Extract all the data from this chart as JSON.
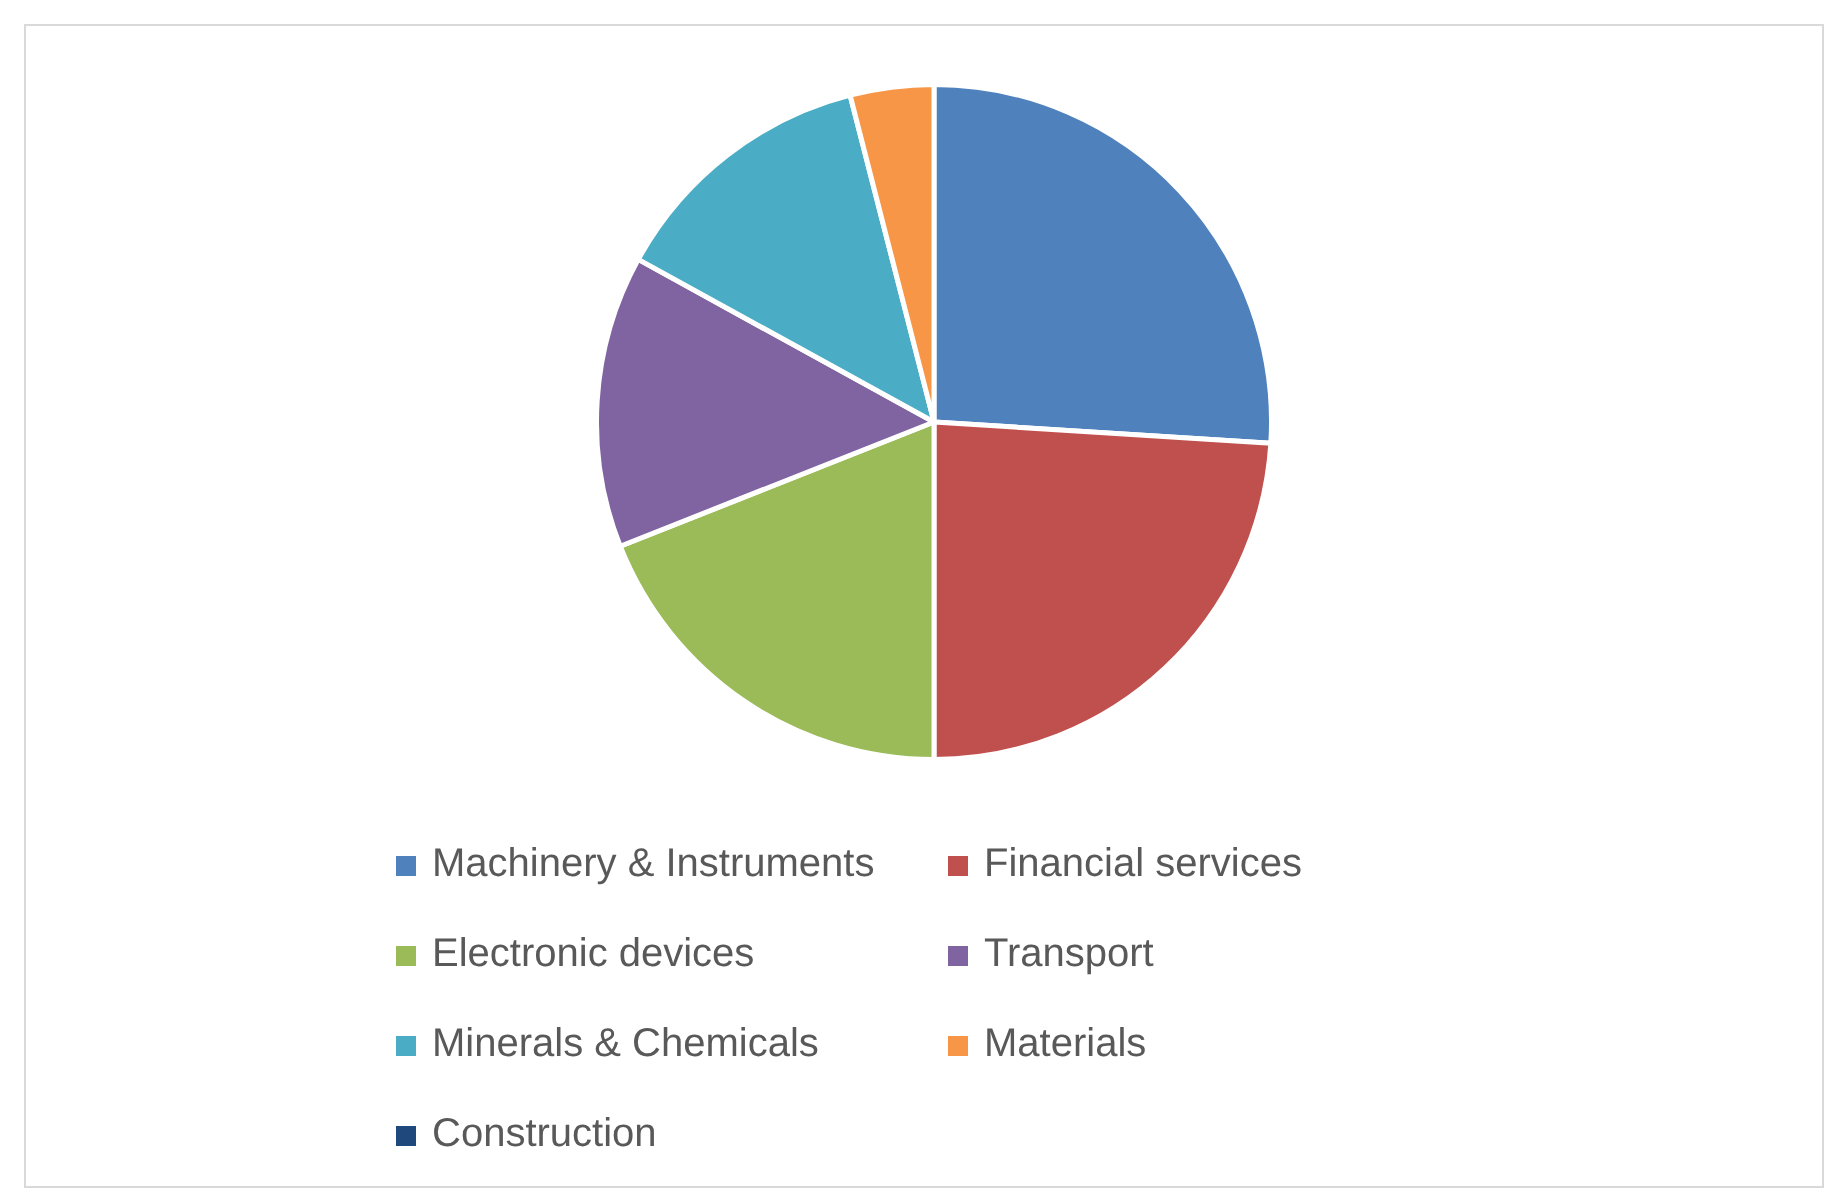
{
  "chart_data": {
    "type": "pie",
    "categories": [
      "Machinery & Instruments",
      "Financial services",
      "Electronic devices",
      "Transport",
      "Minerals & Chemicals",
      "Materials",
      "Construction"
    ],
    "values": [
      26,
      24,
      19,
      14,
      13,
      4,
      0
    ],
    "colors": [
      "#4f81bd",
      "#c0504d",
      "#9bbb59",
      "#8064a2",
      "#4bacc6",
      "#f79646",
      "#1f497d"
    ],
    "legend": "bottom"
  }
}
